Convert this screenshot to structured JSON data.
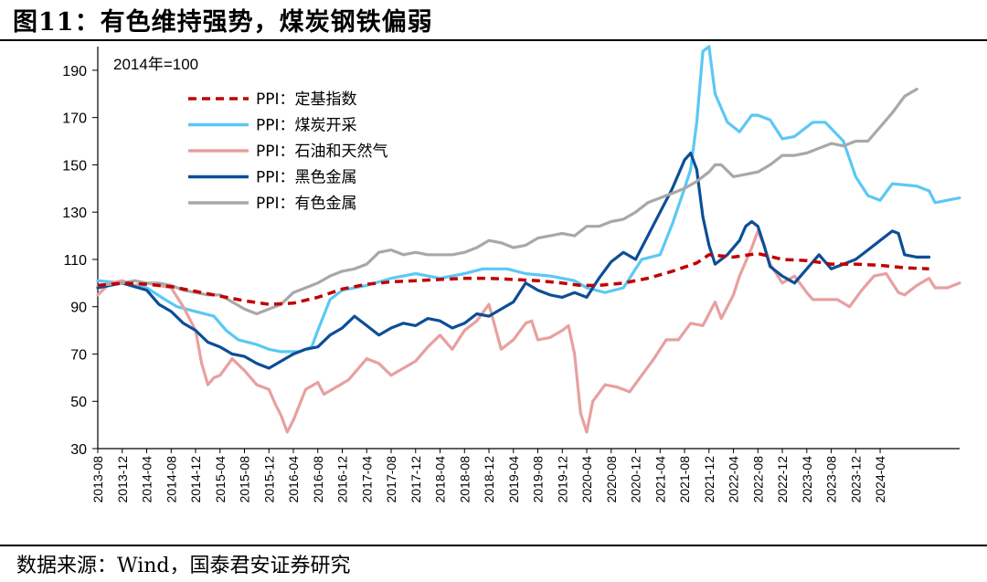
{
  "header": {
    "title": "图11：有色维持强势，煤炭钢铁偏弱"
  },
  "footer": {
    "source": "数据来源：Wind，国泰君安证券研究"
  },
  "chart_data": {
    "type": "line",
    "unit_label": "2014年=100",
    "ylim": [
      30,
      200
    ],
    "yticks": [
      30,
      50,
      70,
      90,
      110,
      130,
      150,
      170,
      190
    ],
    "xtick_labels": [
      "2013-08",
      "2013-12",
      "2014-04",
      "2014-08",
      "2014-12",
      "2015-04",
      "2015-08",
      "2015-12",
      "2016-04",
      "2016-08",
      "2016-12",
      "2017-04",
      "2017-08",
      "2017-12",
      "2018-04",
      "2018-08",
      "2018-12",
      "2019-04",
      "2019-08",
      "2019-12",
      "2020-04",
      "2020-08",
      "2020-12",
      "2021-04",
      "2021-08",
      "2021-12",
      "2022-04",
      "2022-08",
      "2022-12",
      "2023-04",
      "2023-08",
      "2023-12",
      "2024-04"
    ],
    "x_start": "2013-08",
    "x_end": "2024-08",
    "series": [
      {
        "name": "PPI：定基指数",
        "color": "#c00000",
        "style": "dashed",
        "points": [
          [
            0,
            99
          ],
          [
            4,
            100
          ],
          [
            8,
            99.5
          ],
          [
            12,
            98.5
          ],
          [
            16,
            96.5
          ],
          [
            20,
            94.5
          ],
          [
            24,
            92.5
          ],
          [
            28,
            91
          ],
          [
            32,
            91.5
          ],
          [
            36,
            94
          ],
          [
            40,
            97.5
          ],
          [
            44,
            99.5
          ],
          [
            48,
            100.5
          ],
          [
            52,
            101
          ],
          [
            56,
            101.5
          ],
          [
            60,
            102
          ],
          [
            64,
            102
          ],
          [
            68,
            101.5
          ],
          [
            72,
            101
          ],
          [
            76,
            100
          ],
          [
            79,
            99
          ],
          [
            82,
            99
          ],
          [
            86,
            100
          ],
          [
            90,
            102
          ],
          [
            94,
            105
          ],
          [
            98,
            108.5
          ],
          [
            100,
            112
          ],
          [
            104,
            111
          ],
          [
            108,
            112.5
          ],
          [
            112,
            110
          ],
          [
            116,
            109.5
          ],
          [
            120,
            108
          ],
          [
            124,
            108
          ],
          [
            128,
            107.5
          ],
          [
            132,
            106.5
          ],
          [
            136,
            106
          ]
        ]
      },
      {
        "name": "PPI：煤炭开采",
        "color": "#5bc8f5",
        "style": "solid",
        "points": [
          [
            0,
            101
          ],
          [
            4,
            100
          ],
          [
            8,
            98
          ],
          [
            11,
            93
          ],
          [
            13,
            90
          ],
          [
            16,
            88
          ],
          [
            19,
            86
          ],
          [
            21,
            80
          ],
          [
            23,
            76
          ],
          [
            26,
            74
          ],
          [
            28,
            72
          ],
          [
            30,
            71
          ],
          [
            33,
            71
          ],
          [
            35,
            73
          ],
          [
            36,
            80
          ],
          [
            38,
            93
          ],
          [
            40,
            97
          ],
          [
            44,
            99
          ],
          [
            48,
            102
          ],
          [
            52,
            104
          ],
          [
            56,
            102
          ],
          [
            60,
            104
          ],
          [
            63,
            106
          ],
          [
            67,
            106
          ],
          [
            70,
            104
          ],
          [
            74,
            103
          ],
          [
            78,
            101
          ],
          [
            80,
            98
          ],
          [
            83,
            96
          ],
          [
            86,
            98
          ],
          [
            89,
            110
          ],
          [
            92,
            112
          ],
          [
            94,
            125
          ],
          [
            96,
            140
          ],
          [
            97,
            148
          ],
          [
            98,
            168
          ],
          [
            99,
            198
          ],
          [
            100,
            200
          ],
          [
            101,
            180
          ],
          [
            103,
            168
          ],
          [
            105,
            164
          ],
          [
            107,
            171
          ],
          [
            108,
            171
          ],
          [
            110,
            169
          ],
          [
            112,
            161
          ],
          [
            114,
            162
          ],
          [
            117,
            168
          ],
          [
            119,
            168
          ],
          [
            122,
            160
          ],
          [
            124,
            145
          ],
          [
            126,
            137
          ],
          [
            128,
            135
          ],
          [
            130,
            142
          ],
          [
            134,
            141
          ],
          [
            136,
            139
          ],
          [
            137,
            134
          ],
          [
            139,
            135
          ],
          [
            141,
            136
          ]
        ]
      },
      {
        "name": "PPI：石油和天然气",
        "color": "#e8a0a0",
        "style": "solid",
        "points": [
          [
            0,
            95
          ],
          [
            2,
            100
          ],
          [
            4,
            101
          ],
          [
            6,
            99
          ],
          [
            8,
            100
          ],
          [
            10,
            99
          ],
          [
            12,
            98
          ],
          [
            14,
            90
          ],
          [
            16,
            80
          ],
          [
            17,
            66
          ],
          [
            18,
            57
          ],
          [
            19,
            60
          ],
          [
            20,
            61
          ],
          [
            22,
            68
          ],
          [
            24,
            63
          ],
          [
            26,
            57
          ],
          [
            28,
            55
          ],
          [
            29,
            49
          ],
          [
            30,
            44
          ],
          [
            31,
            37
          ],
          [
            32,
            42
          ],
          [
            34,
            55
          ],
          [
            36,
            58
          ],
          [
            37,
            53
          ],
          [
            39,
            56
          ],
          [
            41,
            59
          ],
          [
            42,
            62
          ],
          [
            44,
            68
          ],
          [
            46,
            66
          ],
          [
            48,
            61
          ],
          [
            50,
            64
          ],
          [
            52,
            67
          ],
          [
            54,
            73
          ],
          [
            56,
            78
          ],
          [
            58,
            72
          ],
          [
            60,
            80
          ],
          [
            62,
            84
          ],
          [
            64,
            91
          ],
          [
            66,
            72
          ],
          [
            68,
            76
          ],
          [
            70,
            83
          ],
          [
            71,
            84
          ],
          [
            72,
            76
          ],
          [
            74,
            77
          ],
          [
            76,
            80
          ],
          [
            77,
            82
          ],
          [
            78,
            70
          ],
          [
            79,
            45
          ],
          [
            80,
            37
          ],
          [
            81,
            50
          ],
          [
            83,
            57
          ],
          [
            85,
            56
          ],
          [
            87,
            54
          ],
          [
            89,
            61
          ],
          [
            91,
            68
          ],
          [
            93,
            76
          ],
          [
            95,
            76
          ],
          [
            97,
            83
          ],
          [
            99,
            82
          ],
          [
            101,
            92
          ],
          [
            102,
            85
          ],
          [
            104,
            95
          ],
          [
            105,
            103
          ],
          [
            107,
            115
          ],
          [
            108,
            122
          ],
          [
            109,
            116
          ],
          [
            110,
            108
          ],
          [
            112,
            100
          ],
          [
            114,
            103
          ],
          [
            116,
            96
          ],
          [
            117,
            93
          ],
          [
            119,
            93
          ],
          [
            121,
            93
          ],
          [
            123,
            90
          ],
          [
            125,
            97
          ],
          [
            127,
            103
          ],
          [
            129,
            104
          ],
          [
            131,
            96
          ],
          [
            132,
            95
          ],
          [
            134,
            99
          ],
          [
            136,
            102
          ],
          [
            137,
            98
          ],
          [
            139,
            98
          ],
          [
            141,
            100
          ]
        ]
      },
      {
        "name": "PPI：黑色金属",
        "color": "#0d4e96",
        "style": "solid",
        "points": [
          [
            0,
            98
          ],
          [
            4,
            100
          ],
          [
            8,
            97
          ],
          [
            10,
            91
          ],
          [
            12,
            88
          ],
          [
            14,
            83
          ],
          [
            16,
            80
          ],
          [
            18,
            75
          ],
          [
            20,
            73
          ],
          [
            22,
            70
          ],
          [
            24,
            69
          ],
          [
            26,
            66
          ],
          [
            28,
            64
          ],
          [
            30,
            67
          ],
          [
            32,
            70
          ],
          [
            34,
            72
          ],
          [
            36,
            73
          ],
          [
            38,
            78
          ],
          [
            40,
            81
          ],
          [
            42,
            86
          ],
          [
            44,
            82
          ],
          [
            46,
            78
          ],
          [
            48,
            81
          ],
          [
            50,
            83
          ],
          [
            52,
            82
          ],
          [
            54,
            85
          ],
          [
            56,
            84
          ],
          [
            58,
            81
          ],
          [
            60,
            83
          ],
          [
            62,
            87
          ],
          [
            64,
            86
          ],
          [
            66,
            89
          ],
          [
            68,
            92
          ],
          [
            70,
            100
          ],
          [
            72,
            97
          ],
          [
            74,
            95
          ],
          [
            76,
            94
          ],
          [
            78,
            96
          ],
          [
            80,
            94
          ],
          [
            82,
            102
          ],
          [
            84,
            109
          ],
          [
            86,
            113
          ],
          [
            88,
            110
          ],
          [
            90,
            120
          ],
          [
            92,
            130
          ],
          [
            94,
            140
          ],
          [
            96,
            152
          ],
          [
            97,
            155
          ],
          [
            98,
            148
          ],
          [
            99,
            128
          ],
          [
            100,
            116
          ],
          [
            101,
            108
          ],
          [
            103,
            112
          ],
          [
            105,
            118
          ],
          [
            106,
            124
          ],
          [
            107,
            126
          ],
          [
            108,
            124
          ],
          [
            109,
            116
          ],
          [
            110,
            107
          ],
          [
            112,
            103
          ],
          [
            114,
            100
          ],
          [
            116,
            106
          ],
          [
            118,
            112
          ],
          [
            120,
            106
          ],
          [
            122,
            108
          ],
          [
            124,
            110
          ],
          [
            126,
            114
          ],
          [
            128,
            118
          ],
          [
            130,
            122
          ],
          [
            131,
            121
          ],
          [
            132,
            112
          ],
          [
            134,
            111
          ],
          [
            136,
            111
          ]
        ]
      },
      {
        "name": "PPI：有色金属",
        "color": "#a8a8a8",
        "style": "solid",
        "points": [
          [
            0,
            99
          ],
          [
            4,
            100
          ],
          [
            6,
            101
          ],
          [
            8,
            100
          ],
          [
            10,
            100
          ],
          [
            12,
            99
          ],
          [
            14,
            97
          ],
          [
            16,
            96
          ],
          [
            18,
            95
          ],
          [
            20,
            95
          ],
          [
            22,
            92
          ],
          [
            24,
            89
          ],
          [
            26,
            87
          ],
          [
            28,
            89
          ],
          [
            30,
            91
          ],
          [
            32,
            96
          ],
          [
            34,
            98
          ],
          [
            36,
            100
          ],
          [
            38,
            103
          ],
          [
            40,
            105
          ],
          [
            42,
            106
          ],
          [
            44,
            108
          ],
          [
            46,
            113
          ],
          [
            48,
            114
          ],
          [
            50,
            112
          ],
          [
            52,
            113
          ],
          [
            54,
            112
          ],
          [
            56,
            112
          ],
          [
            58,
            112
          ],
          [
            60,
            113
          ],
          [
            62,
            115
          ],
          [
            64,
            118
          ],
          [
            66,
            117
          ],
          [
            68,
            115
          ],
          [
            70,
            116
          ],
          [
            72,
            119
          ],
          [
            74,
            120
          ],
          [
            76,
            121
          ],
          [
            78,
            120
          ],
          [
            80,
            124
          ],
          [
            82,
            124
          ],
          [
            84,
            126
          ],
          [
            86,
            127
          ],
          [
            88,
            130
          ],
          [
            90,
            134
          ],
          [
            92,
            136
          ],
          [
            94,
            138
          ],
          [
            96,
            140
          ],
          [
            98,
            143
          ],
          [
            100,
            147
          ],
          [
            101,
            150
          ],
          [
            102,
            150
          ],
          [
            104,
            145
          ],
          [
            106,
            146
          ],
          [
            108,
            147
          ],
          [
            110,
            150
          ],
          [
            112,
            154
          ],
          [
            114,
            154
          ],
          [
            116,
            155
          ],
          [
            118,
            157
          ],
          [
            120,
            159
          ],
          [
            122,
            158
          ],
          [
            124,
            160
          ],
          [
            126,
            160
          ],
          [
            128,
            166
          ],
          [
            130,
            172
          ],
          [
            132,
            179
          ],
          [
            134,
            182
          ]
        ]
      }
    ]
  }
}
